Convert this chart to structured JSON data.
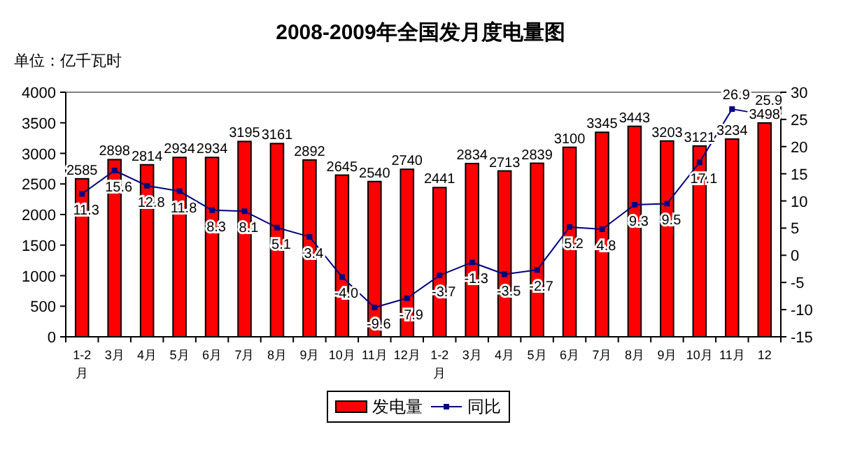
{
  "chart_data": {
    "type": "bar",
    "title": "2008-2009年全国发月度电量图",
    "ylabel": "单位：亿千瓦时",
    "categories": [
      "1-2月",
      "3月",
      "4月",
      "5月",
      "6月",
      "7月",
      "8月",
      "9月",
      "10月",
      "11月",
      "12月",
      "1-2月",
      "3月",
      "4月",
      "5月",
      "6月",
      "7月",
      "8月",
      "9月",
      "10月",
      "11月",
      "12"
    ],
    "series": [
      {
        "name": "发电量",
        "type": "bar",
        "color": "#ff0000",
        "values": [
          2585,
          2898,
          2814,
          2934,
          2934,
          3195,
          3161,
          2892,
          2645,
          2540,
          2740,
          2441,
          2834,
          2713,
          2839,
          3100,
          3345,
          3443,
          3203,
          3121,
          3234,
          3498
        ]
      },
      {
        "name": "同比",
        "type": "line",
        "axis": "y2",
        "color": "#000080",
        "marker": "square",
        "values": [
          11.3,
          15.6,
          12.8,
          11.8,
          8.3,
          8.1,
          5.1,
          3.4,
          -4.0,
          -9.6,
          -7.9,
          -3.7,
          -1.3,
          -3.5,
          -2.7,
          5.2,
          4.8,
          9.3,
          9.5,
          17.1,
          26.9,
          25.9
        ],
        "value_labels": [
          "11.3",
          "15.6",
          "12.8",
          "11.8",
          "8.3",
          "8.1",
          "5.1",
          "3.4",
          "-4.0",
          "-9.6",
          "-7.9",
          "-3.7",
          "-1.3",
          "-3.5",
          "-2.7",
          "5.2",
          "4.8",
          "9.3",
          "9.5",
          "17.1",
          "26.9",
          "25.9"
        ]
      }
    ],
    "ylim": [
      0,
      4000
    ],
    "yticks": [
      0,
      500,
      1000,
      1500,
      2000,
      2500,
      3000,
      3500,
      4000
    ],
    "y2lim": [
      -15,
      30
    ],
    "y2ticks": [
      -15,
      -10,
      -5,
      0,
      5,
      10,
      15,
      20,
      25,
      30
    ],
    "data_labels": true,
    "legend": "bottom",
    "grid": false
  }
}
